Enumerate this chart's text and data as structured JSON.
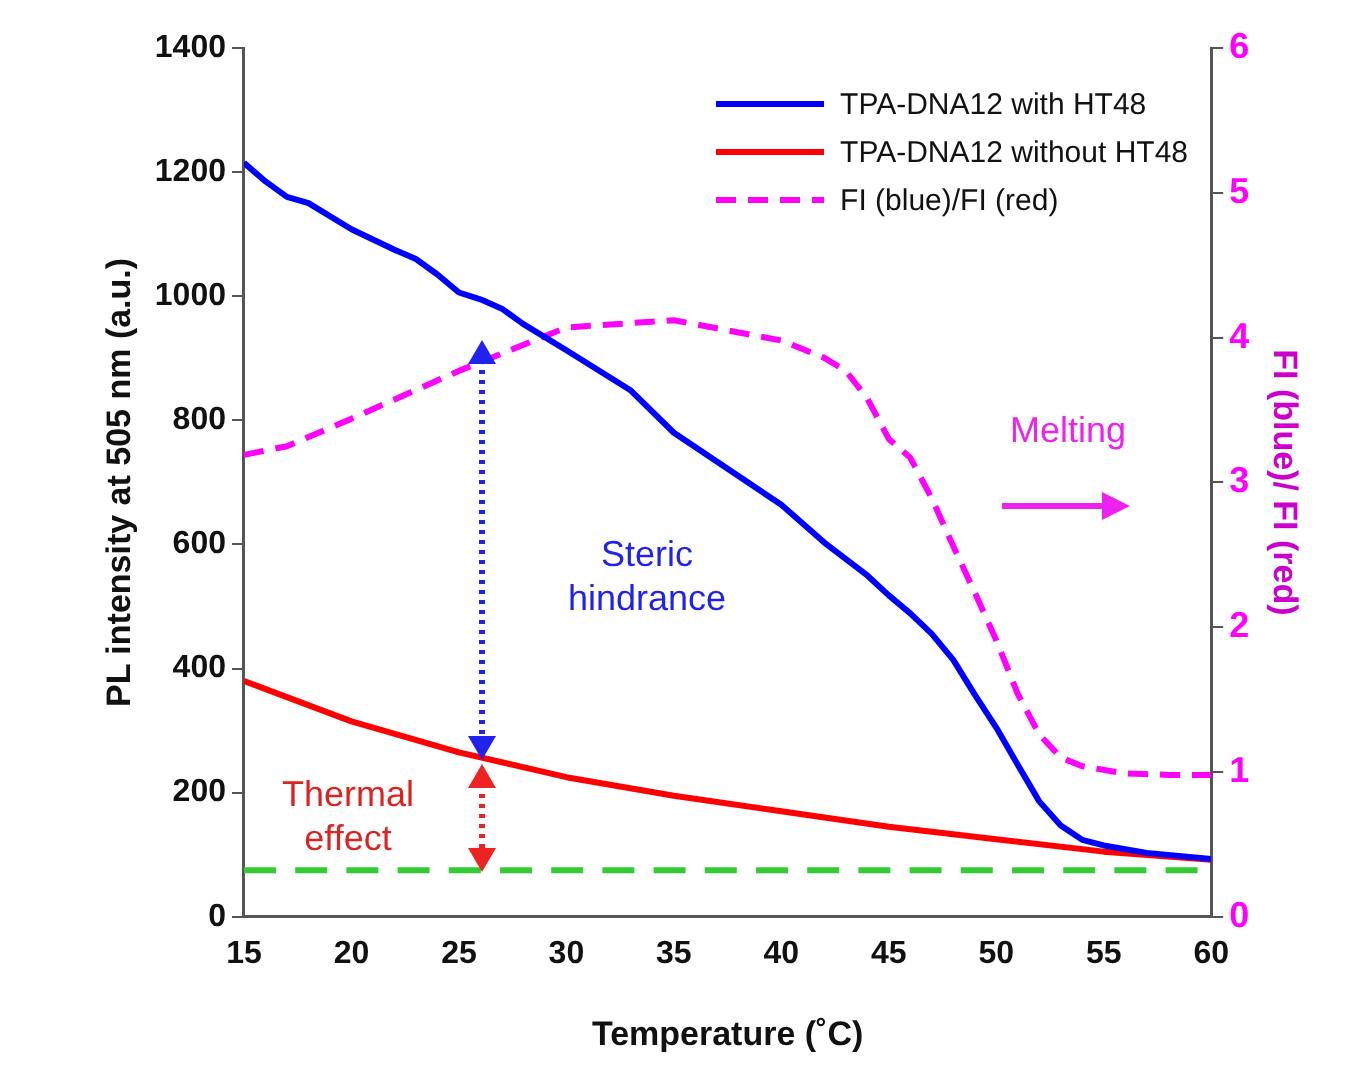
{
  "chart_data": {
    "type": "line",
    "xlabel": "Temperature (˚C)",
    "ylabel": "PL intensity at 505 nm (a.u.)",
    "y2label": "FI (blue)/ FI (red)",
    "xlim": [
      15,
      60
    ],
    "xticks": [
      15,
      20,
      25,
      30,
      35,
      40,
      45,
      50,
      55,
      60
    ],
    "ylim": [
      0,
      1400
    ],
    "yticks": [
      0,
      200,
      400,
      600,
      800,
      1000,
      1200,
      1400
    ],
    "y2lim": [
      0,
      6
    ],
    "y2ticks": [
      0,
      1,
      2,
      3,
      4,
      5,
      6
    ],
    "grid": false,
    "legend": "top right",
    "marker": "none",
    "series": [
      {
        "name": "TPA-DNA12 with HT48",
        "color": "#0000ff",
        "line_style": "solid",
        "x": [
          15,
          16,
          17,
          18,
          20,
          22,
          23,
          24,
          25,
          26,
          27,
          28,
          30,
          33,
          35,
          40,
          42,
          44,
          45,
          46,
          47,
          48,
          49,
          50,
          51,
          52,
          53,
          54,
          55,
          57,
          60
        ],
        "values": [
          1215,
          1185,
          1160,
          1150,
          1108,
          1075,
          1060,
          1035,
          1006,
          995,
          980,
          955,
          913,
          848,
          780,
          664,
          603,
          550,
          518,
          489,
          456,
          414,
          358,
          305,
          245,
          186,
          147,
          124,
          115,
          103,
          93
        ]
      },
      {
        "name": "TPA-DNA12 without HT48",
        "color": "#ff0000",
        "line_style": "solid",
        "x": [
          15,
          20,
          25,
          30,
          35,
          40,
          45,
          50,
          55,
          60
        ],
        "values": [
          380,
          315,
          265,
          225,
          195,
          170,
          145,
          125,
          105,
          92
        ]
      },
      {
        "name": "FI (blue)/FI (red)",
        "color": "#ff00ff",
        "line_style": "dashed",
        "axis": "y2",
        "x": [
          15,
          17,
          20,
          25,
          30,
          35,
          40,
          42,
          43,
          44,
          45,
          46,
          47,
          48,
          49,
          50,
          51,
          52,
          53,
          54,
          56,
          58,
          60
        ],
        "values": [
          3.19,
          3.25,
          3.44,
          3.77,
          4.07,
          4.12,
          3.98,
          3.86,
          3.77,
          3.58,
          3.3,
          3.17,
          2.89,
          2.56,
          2.24,
          1.91,
          1.54,
          1.26,
          1.1,
          1.04,
          0.99,
          0.98,
          0.98
        ]
      }
    ],
    "ref_lines": [
      {
        "axis": "y",
        "value": 75,
        "color": "#33cc33",
        "line_style": "dashed"
      }
    ],
    "annotations": [
      "Steric\nhindrance",
      "Thermal\neffect",
      "Melting"
    ]
  }
}
